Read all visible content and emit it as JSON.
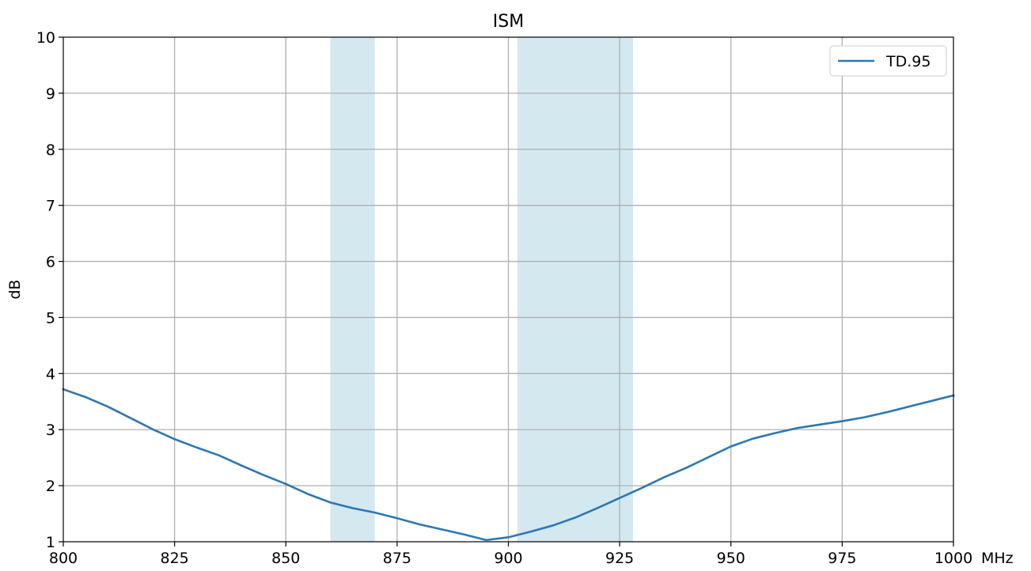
{
  "chart_data": {
    "type": "line",
    "title": "ISM",
    "xlabel": "MHz",
    "ylabel": "dB",
    "xlim": [
      800,
      1000
    ],
    "ylim": [
      1,
      10
    ],
    "x_ticks": [
      800,
      825,
      850,
      875,
      900,
      925,
      950,
      975,
      1000
    ],
    "y_ticks": [
      1,
      2,
      3,
      4,
      5,
      6,
      7,
      8,
      9,
      10
    ],
    "x_tick_labels": [
      "800",
      "825",
      "850",
      "875",
      "900",
      "925",
      "950",
      "975",
      "1000"
    ],
    "y_tick_labels": [
      "1",
      "2",
      "3",
      "4",
      "5",
      "6",
      "7",
      "8",
      "9",
      "10"
    ],
    "grid": true,
    "legend_position": "top-right",
    "shaded_bands": [
      {
        "x_start": 860,
        "x_end": 870,
        "color": "#d4e8f0"
      },
      {
        "x_start": 902,
        "x_end": 928,
        "color": "#d4e8f0"
      }
    ],
    "series": [
      {
        "name": "TD.95",
        "color": "#2e77b0",
        "x": [
          800,
          805,
          810,
          815,
          820,
          825,
          830,
          835,
          840,
          845,
          850,
          855,
          860,
          865,
          870,
          875,
          880,
          885,
          890,
          895,
          900,
          905,
          910,
          915,
          920,
          925,
          930,
          935,
          940,
          945,
          950,
          955,
          960,
          965,
          970,
          975,
          980,
          985,
          990,
          995,
          1000
        ],
        "values": [
          3.72,
          3.58,
          3.41,
          3.21,
          3.01,
          2.83,
          2.68,
          2.54,
          2.36,
          2.19,
          2.03,
          1.85,
          1.7,
          1.6,
          1.52,
          1.42,
          1.31,
          1.22,
          1.13,
          1.03,
          1.08,
          1.18,
          1.29,
          1.43,
          1.6,
          1.78,
          1.96,
          2.15,
          2.32,
          2.51,
          2.7,
          2.84,
          2.94,
          3.03,
          3.09,
          3.15,
          3.22,
          3.31,
          3.41,
          3.51,
          3.61
        ]
      }
    ]
  }
}
